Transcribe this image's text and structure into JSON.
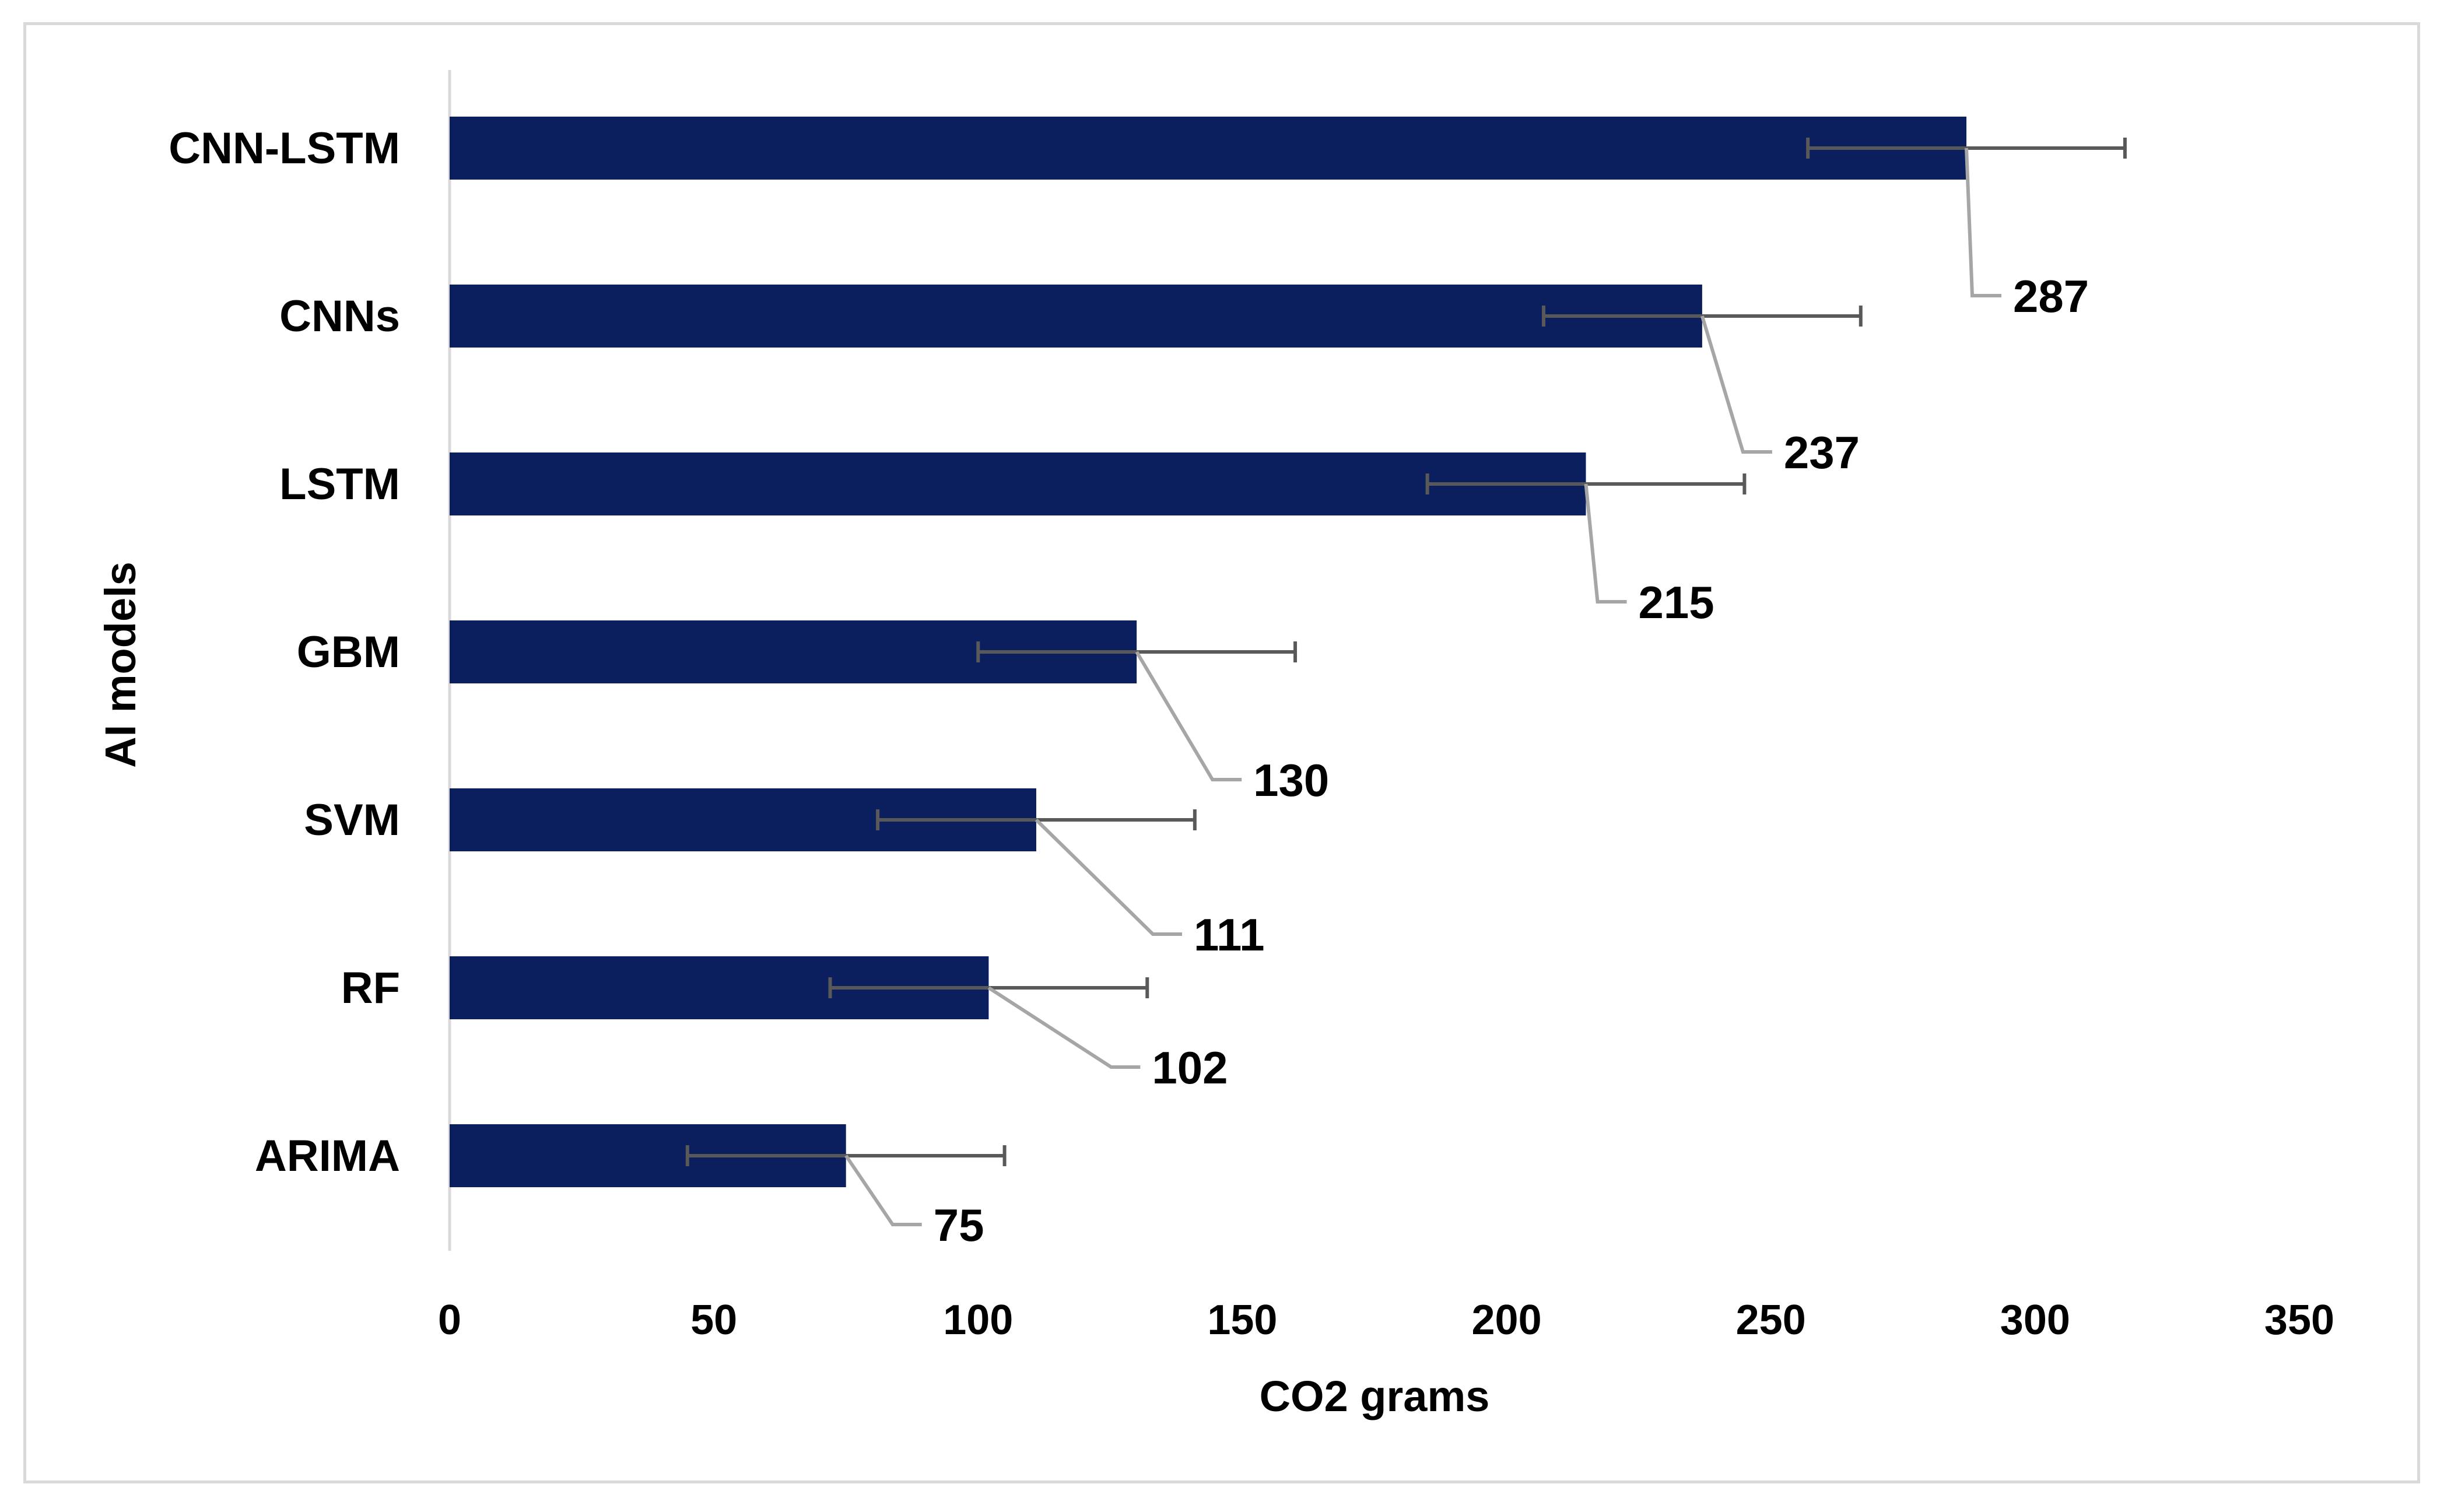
{
  "chart_data": {
    "type": "bar",
    "orientation": "horizontal",
    "categories": [
      "CNN-LSTM",
      "CNNs",
      "LSTM",
      "GBM",
      "SVM",
      "RF",
      "ARIMA"
    ],
    "values": [
      287,
      237,
      215,
      130,
      111,
      102,
      75
    ],
    "error_plus_minus": [
      30,
      30,
      30,
      30,
      30,
      30,
      30
    ],
    "data_labels": [
      "287",
      "237",
      "215",
      "130",
      "111",
      "102",
      "75"
    ],
    "xlabel": "CO2 grams",
    "ylabel": "AI models",
    "xlim": [
      0,
      350
    ],
    "xticks": [
      0,
      50,
      100,
      150,
      200,
      250,
      300,
      350
    ],
    "xtick_labels": [
      "0",
      "50",
      "100",
      "150",
      "200",
      "250",
      "300",
      "350"
    ],
    "grid": false,
    "legend": "none",
    "colors": {
      "bar": "#0b1f5e",
      "error_bar": "#595959",
      "leader_line": "#a6a6a6",
      "axis_line": "#d9d9d9"
    }
  }
}
